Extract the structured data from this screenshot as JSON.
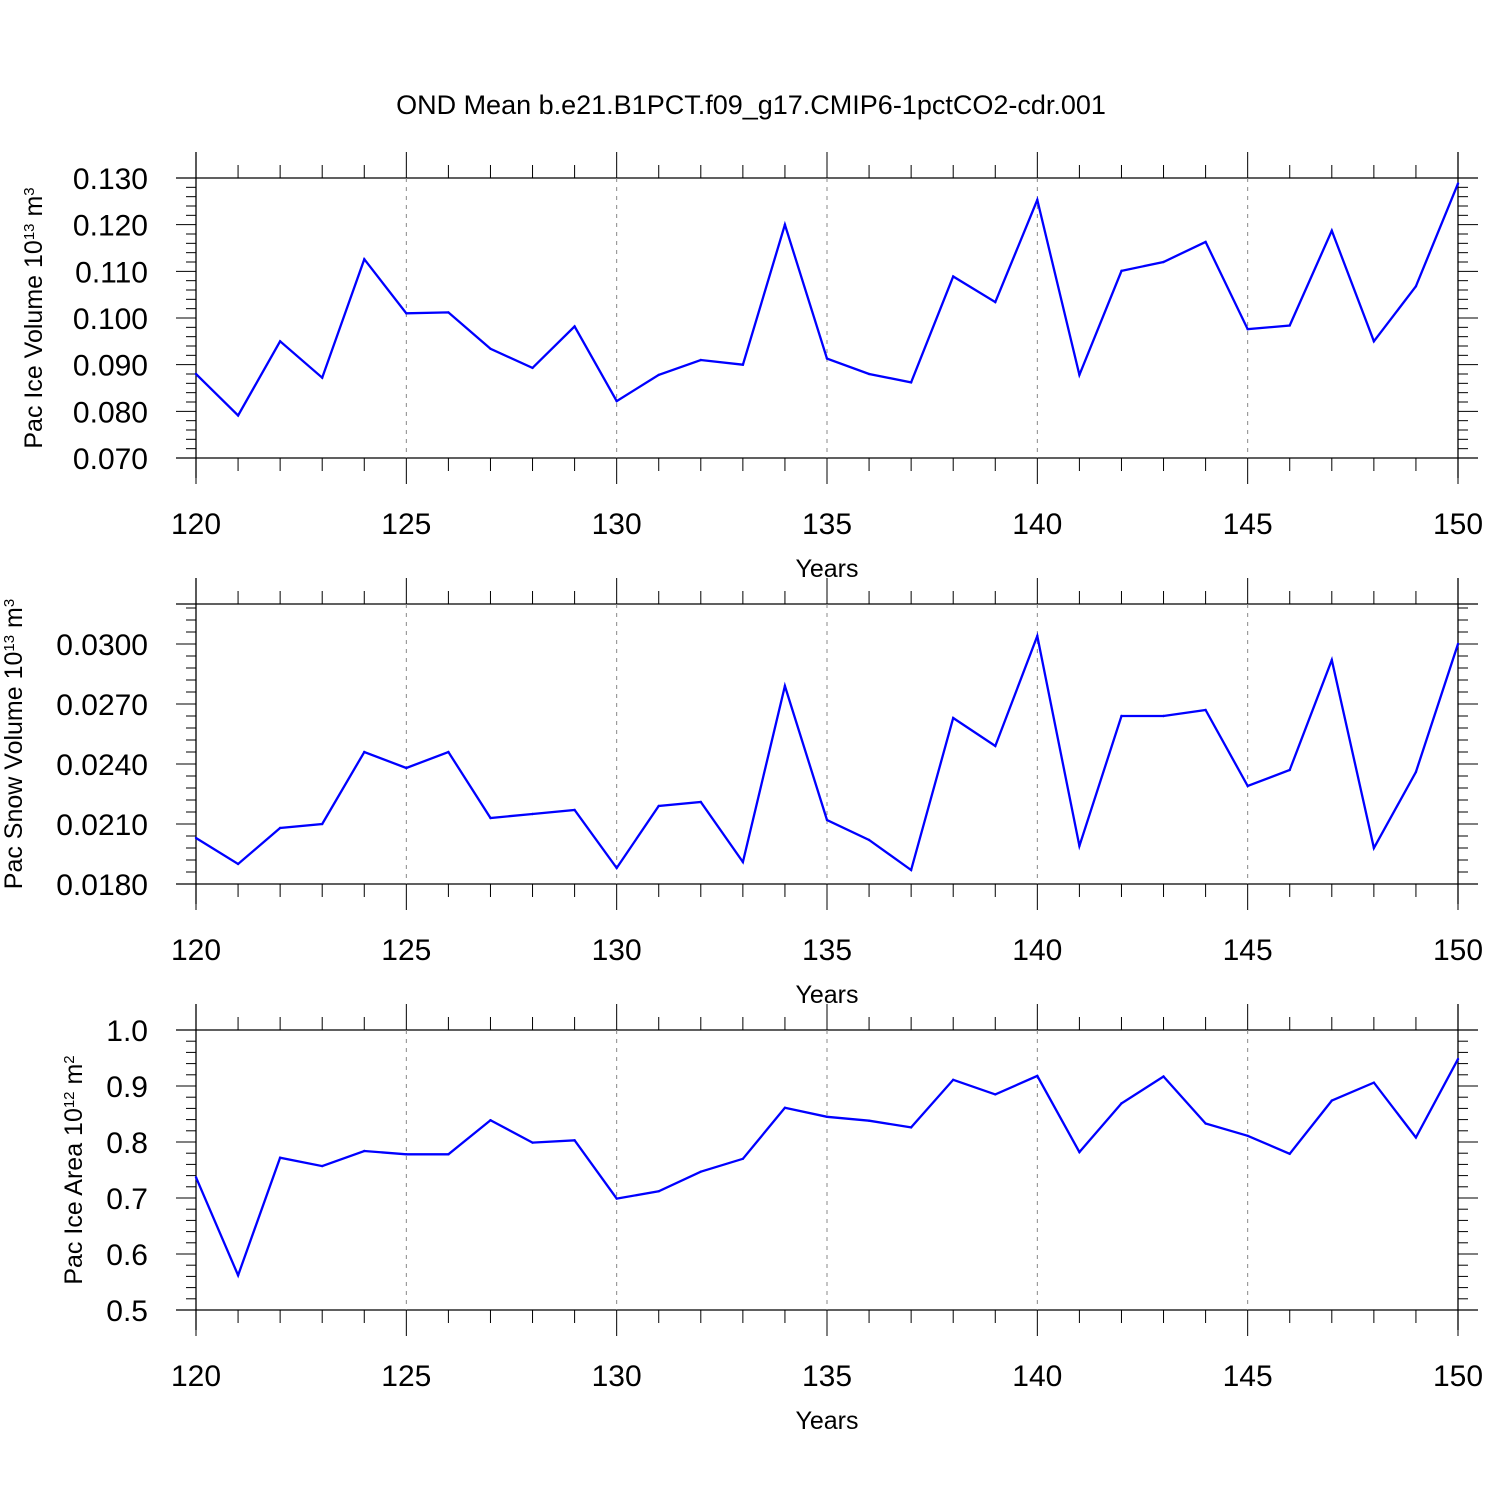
{
  "figure": {
    "title": "OND Mean b.e21.B1PCT.f09_g17.CMIP6-1pctCO2-cdr.001",
    "line_color": "#0000ff",
    "grid_color": "#888888"
  },
  "chart_data": [
    {
      "type": "line",
      "ylabel": {
        "base": "Pac Ice Volume 10",
        "exp": "13",
        "unit": " m",
        "unit_exp": "3"
      },
      "xlabel": "Years",
      "xlim": [
        120,
        150
      ],
      "ylim": [
        0.07,
        0.13
      ],
      "xticks": [
        120,
        125,
        130,
        135,
        140,
        145,
        150
      ],
      "xtick_labels": [
        "120",
        "125",
        "130",
        "135",
        "140",
        "145",
        "150"
      ],
      "yticks": [
        0.07,
        0.08,
        0.09,
        0.1,
        0.11,
        0.12,
        0.13
      ],
      "ytick_labels": [
        "0.070",
        "0.080",
        "0.090",
        "0.100",
        "0.110",
        "0.120",
        "0.130"
      ],
      "grid": "vertical dashed at major x ticks",
      "x": [
        120,
        121,
        122,
        123,
        124,
        125,
        126,
        127,
        128,
        129,
        130,
        131,
        132,
        133,
        134,
        135,
        136,
        137,
        138,
        139,
        140,
        141,
        142,
        143,
        144,
        145,
        146,
        147,
        148,
        149,
        150
      ],
      "values": [
        0.088,
        0.0791,
        0.095,
        0.0872,
        0.1126,
        0.101,
        0.1012,
        0.0934,
        0.0893,
        0.0982,
        0.0822,
        0.0878,
        0.091,
        0.09,
        0.12,
        0.0913,
        0.088,
        0.0862,
        0.1089,
        0.1034,
        0.1253,
        0.0878,
        0.1101,
        0.112,
        0.1163,
        0.0976,
        0.0984,
        0.1187,
        0.095,
        0.1068,
        0.1288
      ]
    },
    {
      "type": "line",
      "ylabel": {
        "base": "Pac Snow Volume 10",
        "exp": "13",
        "unit": " m",
        "unit_exp": "3"
      },
      "xlabel": "Years",
      "xlim": [
        120,
        150
      ],
      "ylim": [
        0.018,
        0.032
      ],
      "xticks": [
        120,
        125,
        130,
        135,
        140,
        145,
        150
      ],
      "xtick_labels": [
        "120",
        "125",
        "130",
        "135",
        "140",
        "145",
        "150"
      ],
      "yticks": [
        0.018,
        0.021,
        0.024,
        0.027,
        0.03
      ],
      "ytick_labels": [
        "0.0180",
        "0.0210",
        "0.0240",
        "0.0270",
        "0.0300"
      ],
      "grid": "vertical dashed at major x ticks",
      "x": [
        120,
        121,
        122,
        123,
        124,
        125,
        126,
        127,
        128,
        129,
        130,
        131,
        132,
        133,
        134,
        135,
        136,
        137,
        138,
        139,
        140,
        141,
        142,
        143,
        144,
        145,
        146,
        147,
        148,
        149,
        150
      ],
      "values": [
        0.0203,
        0.019,
        0.0208,
        0.021,
        0.0246,
        0.0238,
        0.0246,
        0.0213,
        0.0215,
        0.0217,
        0.0188,
        0.0219,
        0.0221,
        0.0191,
        0.0279,
        0.0212,
        0.0202,
        0.0187,
        0.0263,
        0.0249,
        0.0304,
        0.0199,
        0.0264,
        0.0264,
        0.0267,
        0.0229,
        0.0237,
        0.0292,
        0.0198,
        0.0236,
        0.03
      ]
    },
    {
      "type": "line",
      "ylabel": {
        "base": "Pac Ice Area 10",
        "exp": "12",
        "unit": " m",
        "unit_exp": "2"
      },
      "xlabel": "Years",
      "xlim": [
        120,
        150
      ],
      "ylim": [
        0.5,
        1.0
      ],
      "xticks": [
        120,
        125,
        130,
        135,
        140,
        145,
        150
      ],
      "xtick_labels": [
        "120",
        "125",
        "130",
        "135",
        "140",
        "145",
        "150"
      ],
      "yticks": [
        0.5,
        0.6,
        0.7,
        0.8,
        0.9,
        1.0
      ],
      "ytick_labels": [
        "0.5",
        "0.6",
        "0.7",
        "0.8",
        "0.9",
        "1.0"
      ],
      "grid": "vertical dashed at major x ticks",
      "x": [
        120,
        121,
        122,
        123,
        124,
        125,
        126,
        127,
        128,
        129,
        130,
        131,
        132,
        133,
        134,
        135,
        136,
        137,
        138,
        139,
        140,
        141,
        142,
        143,
        144,
        145,
        146,
        147,
        148,
        149,
        150
      ],
      "values": [
        0.737,
        0.562,
        0.772,
        0.757,
        0.784,
        0.778,
        0.778,
        0.839,
        0.799,
        0.803,
        0.699,
        0.712,
        0.747,
        0.77,
        0.861,
        0.845,
        0.838,
        0.826,
        0.911,
        0.885,
        0.918,
        0.782,
        0.869,
        0.917,
        0.833,
        0.811,
        0.779,
        0.874,
        0.906,
        0.808,
        0.948
      ]
    }
  ]
}
